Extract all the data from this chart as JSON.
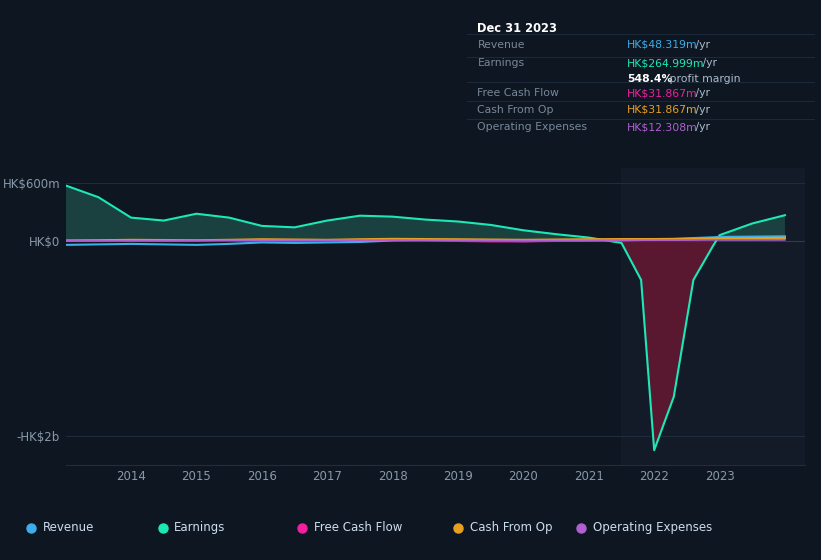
{
  "bg_color": "#0e1621",
  "plot_bg_color": "#0e1621",
  "grid_color": "#1e2d40",
  "years": [
    2013.0,
    2013.5,
    2014.0,
    2014.5,
    2015.0,
    2015.5,
    2016.0,
    2016.5,
    2017.0,
    2017.5,
    2018.0,
    2018.5,
    2019.0,
    2019.5,
    2020.0,
    2020.5,
    2021.0,
    2021.5,
    2021.8,
    2022.0,
    2022.3,
    2022.6,
    2022.9,
    2023.0,
    2023.5,
    2024.0
  ],
  "earnings": [
    570,
    450,
    240,
    210,
    280,
    240,
    155,
    140,
    210,
    260,
    250,
    220,
    200,
    165,
    110,
    70,
    35,
    -20,
    -400,
    -2150,
    -1600,
    -400,
    -50,
    60,
    180,
    265
  ],
  "revenue": [
    -40,
    -35,
    -30,
    -35,
    -40,
    -30,
    -15,
    -20,
    -15,
    -10,
    5,
    10,
    8,
    3,
    -2,
    3,
    5,
    8,
    10,
    12,
    20,
    30,
    38,
    42,
    45,
    48
  ],
  "free_cash_flow": [
    5,
    3,
    0,
    -2,
    2,
    5,
    2,
    0,
    5,
    10,
    8,
    3,
    -2,
    -6,
    -6,
    -2,
    2,
    5,
    8,
    8,
    10,
    15,
    20,
    25,
    28,
    32
  ],
  "cash_from_op": [
    5,
    8,
    12,
    10,
    8,
    12,
    18,
    15,
    12,
    18,
    22,
    20,
    18,
    15,
    12,
    15,
    18,
    20,
    20,
    20,
    22,
    24,
    26,
    28,
    30,
    32
  ],
  "operating_expenses": [
    3,
    3,
    4,
    5,
    6,
    7,
    7,
    7,
    8,
    9,
    9,
    8,
    7,
    6,
    5,
    6,
    7,
    9,
    9,
    9,
    9,
    10,
    11,
    11,
    11,
    12
  ],
  "ylim": [
    -2300,
    750
  ],
  "xlim": [
    2013.0,
    2024.3
  ],
  "yticks": [
    600,
    0,
    -2000
  ],
  "ytick_labels": [
    "HK$600m",
    "HK$0",
    "-HK$2b"
  ],
  "xticks": [
    2014,
    2015,
    2016,
    2017,
    2018,
    2019,
    2020,
    2021,
    2022,
    2023
  ],
  "colors": {
    "revenue": "#3daee9",
    "earnings_line": "#1ce8b5",
    "earnings_fill_pos": "#1a4040",
    "earnings_fill_neg": "#5a1830",
    "free_cash_flow": "#f020a0",
    "cash_from_op": "#e8a020",
    "operating_expenses": "#b060d0"
  },
  "legend_items": [
    {
      "label": "Revenue",
      "color": "#3daee9"
    },
    {
      "label": "Earnings",
      "color": "#1ce8b5"
    },
    {
      "label": "Free Cash Flow",
      "color": "#f020a0"
    },
    {
      "label": "Cash From Op",
      "color": "#e8a020"
    },
    {
      "label": "Operating Expenses",
      "color": "#b060d0"
    }
  ],
  "info_box": {
    "date": "Dec 31 2023",
    "rows": [
      {
        "label": "Revenue",
        "value": "HK$48.319m",
        "suffix": " /yr",
        "value_color": "#3daee9"
      },
      {
        "label": "Earnings",
        "value": "HK$264.999m",
        "suffix": " /yr",
        "value_color": "#1ce8b5"
      },
      {
        "label": "",
        "value": "548.4%",
        "suffix": " profit margin",
        "value_color": "#ffffff",
        "bold": true
      },
      {
        "label": "Free Cash Flow",
        "value": "HK$31.867m",
        "suffix": " /yr",
        "value_color": "#f020a0"
      },
      {
        "label": "Cash From Op",
        "value": "HK$31.867m",
        "suffix": " /yr",
        "value_color": "#e8a020"
      },
      {
        "label": "Operating Expenses",
        "value": "HK$12.308m",
        "suffix": " /yr",
        "value_color": "#b060d0"
      }
    ]
  }
}
